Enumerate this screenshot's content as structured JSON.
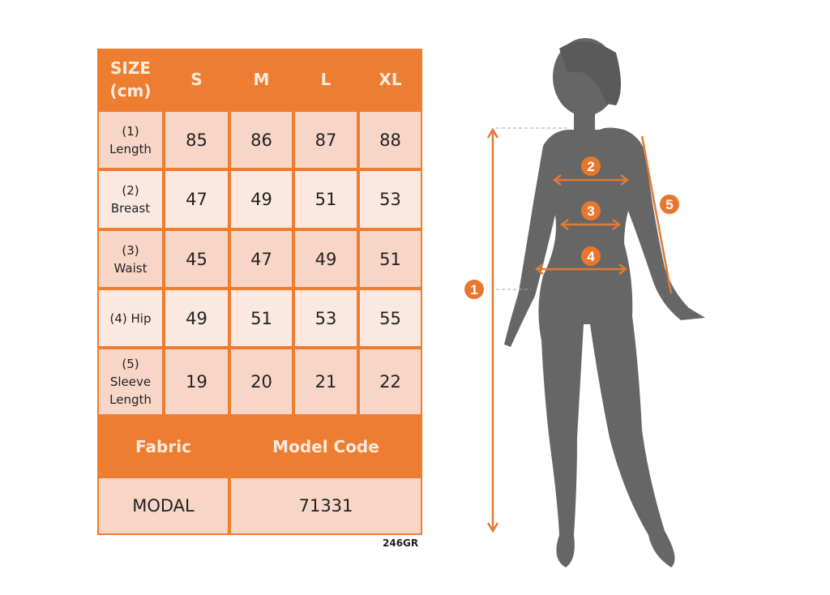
{
  "table": {
    "header": [
      "SIZE\n(cm)",
      "S",
      "M",
      "L",
      "XL"
    ],
    "rows": [
      {
        "label": "(1)\nLength",
        "values": [
          "85",
          "86",
          "87",
          "88"
        ]
      },
      {
        "label": "(2)\nBreast",
        "values": [
          "47",
          "49",
          "51",
          "53"
        ]
      },
      {
        "label": "(3)\nWaist",
        "values": [
          "45",
          "47",
          "49",
          "51"
        ]
      },
      {
        "label": "(4) Hip",
        "values": [
          "49",
          "51",
          "53",
          "55"
        ]
      },
      {
        "label": "(5)\nSleeve\nLength",
        "values": [
          "19",
          "20",
          "21",
          "22"
        ]
      }
    ],
    "footer_headers": [
      "Fabric",
      "Model Code"
    ],
    "footer_values": [
      "MODAL",
      "71331"
    ]
  },
  "product_code": "246GR",
  "figure": {
    "markers": [
      "1",
      "2",
      "3",
      "4",
      "5"
    ]
  },
  "colors": {
    "accent": "#ED7D31",
    "cell_dark": "#F7D6C8",
    "cell_light": "#FBE8E0",
    "silhouette": "#666666"
  }
}
